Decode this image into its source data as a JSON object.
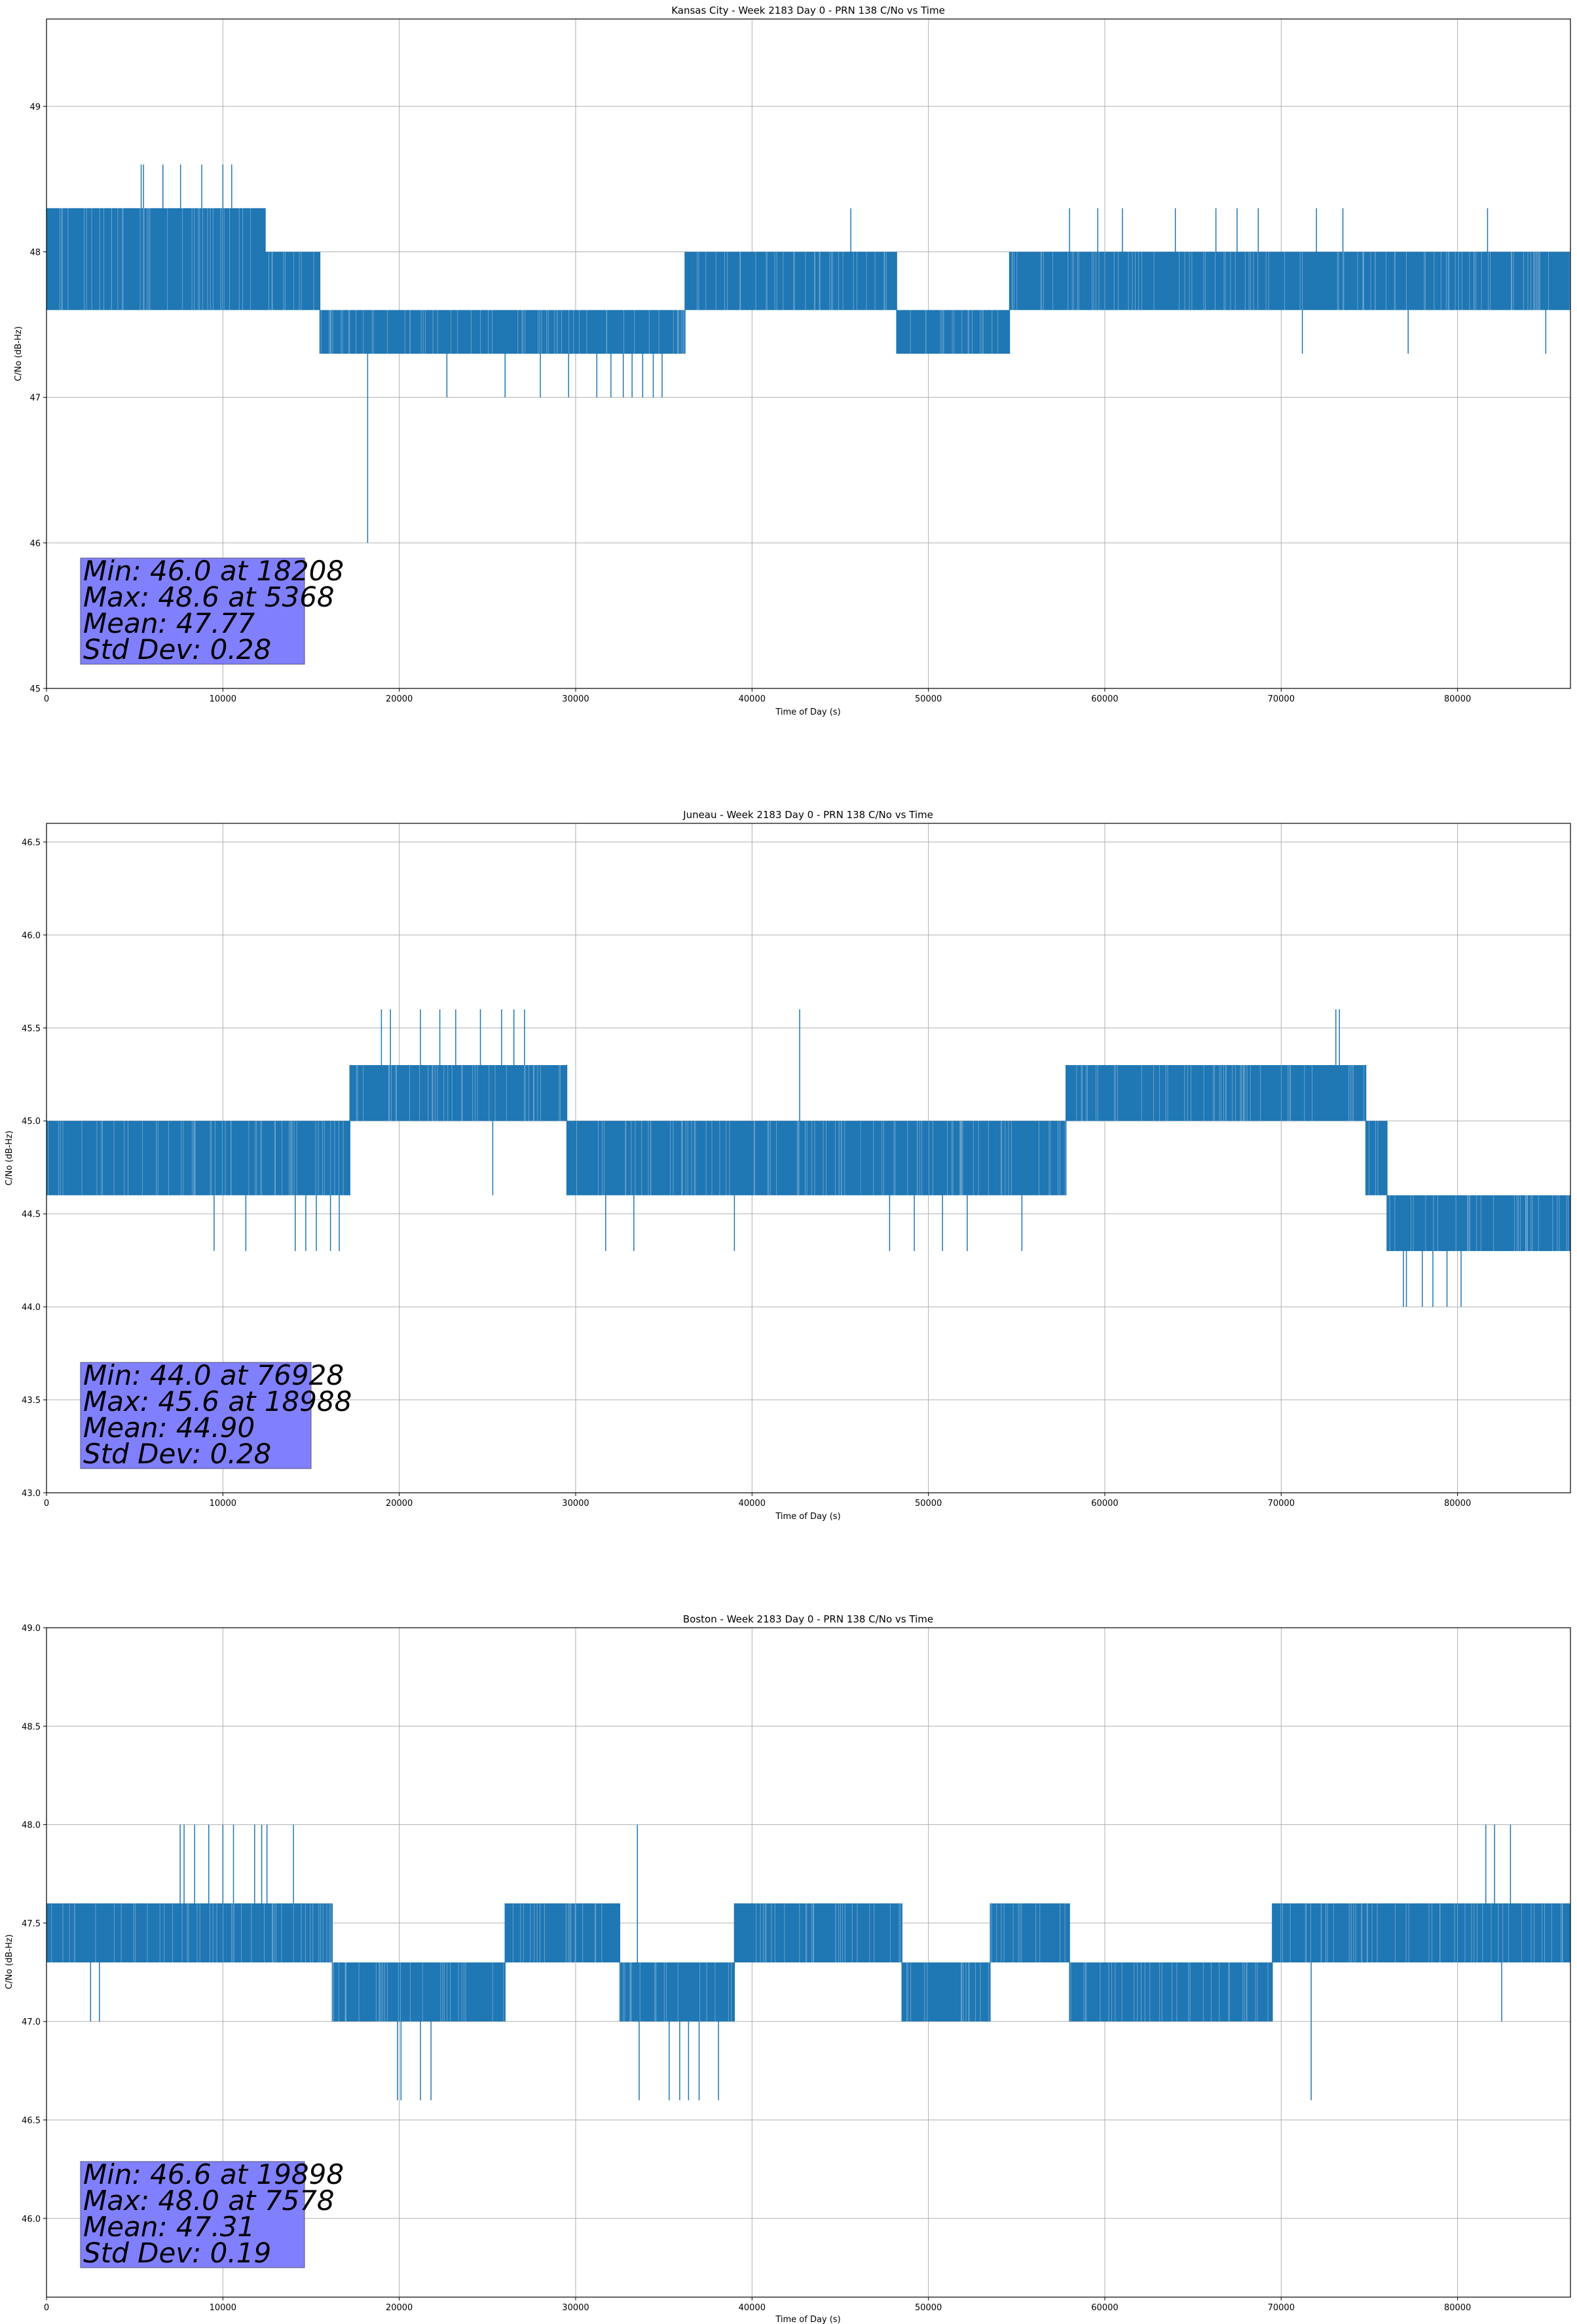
{
  "chart_data": [
    {
      "type": "line",
      "title": "Kansas City - Week 2183 Day 0 - PRN 138 C/No vs Time",
      "xlabel": "Time of Day (s)",
      "ylabel": "C/No (dB-Hz)",
      "xlim": [
        0,
        86400
      ],
      "ylim": [
        45.0,
        49.6
      ],
      "xticks": [
        0,
        10000,
        20000,
        30000,
        40000,
        50000,
        60000,
        70000,
        80000
      ],
      "xtick_labels": [
        "0",
        "10000",
        "20000",
        "30000",
        "40000",
        "50000",
        "60000",
        "70000",
        "80000"
      ],
      "yticks": [
        45,
        46,
        47,
        48,
        49
      ],
      "ytick_labels": [
        "45",
        "46",
        "47",
        "48",
        "49"
      ],
      "grid": true,
      "series_color": "#1f77b4",
      "stats_box": {
        "lines": [
          "Min: 46.0 at 18208",
          "Max: 48.6 at 5368",
          "Mean: 47.77",
          "Std Dev: 0.28"
        ],
        "color": "#8080ff"
      },
      "segments": [
        {
          "start": 0,
          "end": 12400,
          "low": 47.6,
          "high": 48.3
        },
        {
          "start": 12400,
          "end": 15500,
          "low": 47.6,
          "high": 48.0
        },
        {
          "start": 15500,
          "end": 36200,
          "low": 47.3,
          "high": 47.6
        },
        {
          "start": 36200,
          "end": 48200,
          "low": 47.6,
          "high": 48.0
        },
        {
          "start": 48200,
          "end": 54600,
          "low": 47.3,
          "high": 47.6
        },
        {
          "start": 54600,
          "end": 86400,
          "low": 47.6,
          "high": 48.0
        }
      ],
      "events": [
        {
          "x": 18208,
          "y": 46.0
        },
        {
          "x": 5368,
          "y": 48.6
        },
        {
          "x": 5500,
          "y": 48.6
        },
        {
          "x": 6600,
          "y": 48.6
        },
        {
          "x": 7600,
          "y": 48.6
        },
        {
          "x": 8800,
          "y": 48.6
        },
        {
          "x": 10000,
          "y": 48.6
        },
        {
          "x": 10500,
          "y": 48.6
        },
        {
          "x": 22700,
          "y": 47.0
        },
        {
          "x": 26000,
          "y": 47.0
        },
        {
          "x": 28000,
          "y": 47.0
        },
        {
          "x": 29600,
          "y": 47.0
        },
        {
          "x": 31200,
          "y": 47.0
        },
        {
          "x": 32000,
          "y": 47.0
        },
        {
          "x": 32700,
          "y": 47.0
        },
        {
          "x": 33200,
          "y": 47.0
        },
        {
          "x": 33800,
          "y": 47.0
        },
        {
          "x": 34400,
          "y": 47.0
        },
        {
          "x": 34900,
          "y": 47.0
        },
        {
          "x": 45600,
          "y": 48.3
        },
        {
          "x": 58000,
          "y": 48.3
        },
        {
          "x": 59600,
          "y": 48.3
        },
        {
          "x": 61000,
          "y": 48.3
        },
        {
          "x": 64000,
          "y": 48.3
        },
        {
          "x": 66300,
          "y": 48.3
        },
        {
          "x": 67500,
          "y": 48.3
        },
        {
          "x": 68700,
          "y": 48.3
        },
        {
          "x": 72000,
          "y": 48.3
        },
        {
          "x": 73500,
          "y": 48.3
        },
        {
          "x": 81700,
          "y": 48.3
        },
        {
          "x": 71200,
          "y": 47.3
        },
        {
          "x": 77200,
          "y": 47.3
        },
        {
          "x": 85000,
          "y": 47.3
        }
      ]
    },
    {
      "type": "line",
      "title": "Juneau - Week 2183 Day 0 - PRN 138 C/No vs Time",
      "xlabel": "Time of Day (s)",
      "ylabel": "C/No (dB-Hz)",
      "xlim": [
        0,
        86400
      ],
      "ylim": [
        43.0,
        46.6
      ],
      "xticks": [
        0,
        10000,
        20000,
        30000,
        40000,
        50000,
        60000,
        70000,
        80000
      ],
      "xtick_labels": [
        "0",
        "10000",
        "20000",
        "30000",
        "40000",
        "50000",
        "60000",
        "70000",
        "80000"
      ],
      "yticks": [
        43.0,
        43.5,
        44.0,
        44.5,
        45.0,
        45.5,
        46.0,
        46.5
      ],
      "ytick_labels": [
        "43.0",
        "43.5",
        "44.0",
        "44.5",
        "45.0",
        "45.5",
        "46.0",
        "46.5"
      ],
      "grid": true,
      "series_color": "#1f77b4",
      "stats_box": {
        "lines": [
          "Min: 44.0 at 76928",
          "Max: 45.6 at 18988",
          "Mean: 44.90",
          "Std Dev: 0.28"
        ],
        "color": "#8080ff"
      },
      "segments": [
        {
          "start": 0,
          "end": 17200,
          "low": 44.6,
          "high": 45.0
        },
        {
          "start": 17200,
          "end": 29500,
          "low": 45.0,
          "high": 45.3
        },
        {
          "start": 29500,
          "end": 46200,
          "low": 44.6,
          "high": 45.0
        },
        {
          "start": 46200,
          "end": 57800,
          "low": 44.6,
          "high": 45.0
        },
        {
          "start": 57800,
          "end": 74800,
          "low": 45.0,
          "high": 45.3
        },
        {
          "start": 74800,
          "end": 76000,
          "low": 44.6,
          "high": 45.0
        },
        {
          "start": 76000,
          "end": 86400,
          "low": 44.3,
          "high": 44.6
        }
      ],
      "events": [
        {
          "x": 18988,
          "y": 45.6
        },
        {
          "x": 19500,
          "y": 45.6
        },
        {
          "x": 21200,
          "y": 45.6
        },
        {
          "x": 22300,
          "y": 45.6
        },
        {
          "x": 23200,
          "y": 45.6
        },
        {
          "x": 24600,
          "y": 45.6
        },
        {
          "x": 25800,
          "y": 45.6
        },
        {
          "x": 26500,
          "y": 45.6
        },
        {
          "x": 27100,
          "y": 45.6
        },
        {
          "x": 42700,
          "y": 45.6
        },
        {
          "x": 73100,
          "y": 45.6
        },
        {
          "x": 73300,
          "y": 45.6
        },
        {
          "x": 76928,
          "y": 44.0
        },
        {
          "x": 77100,
          "y": 44.0
        },
        {
          "x": 78000,
          "y": 44.0
        },
        {
          "x": 78600,
          "y": 44.0
        },
        {
          "x": 79400,
          "y": 44.0
        },
        {
          "x": 80200,
          "y": 44.0
        },
        {
          "x": 9500,
          "y": 44.3
        },
        {
          "x": 11300,
          "y": 44.3
        },
        {
          "x": 14100,
          "y": 44.3
        },
        {
          "x": 14700,
          "y": 44.3
        },
        {
          "x": 15300,
          "y": 44.3
        },
        {
          "x": 16100,
          "y": 44.3
        },
        {
          "x": 16600,
          "y": 44.3
        },
        {
          "x": 31700,
          "y": 44.3
        },
        {
          "x": 33300,
          "y": 44.3
        },
        {
          "x": 39000,
          "y": 44.3
        },
        {
          "x": 47800,
          "y": 44.3
        },
        {
          "x": 49200,
          "y": 44.3
        },
        {
          "x": 50800,
          "y": 44.3
        },
        {
          "x": 52200,
          "y": 44.3
        },
        {
          "x": 55300,
          "y": 44.3
        },
        {
          "x": 25300,
          "y": 44.6
        }
      ]
    },
    {
      "type": "line",
      "title": "Boston - Week 2183 Day 0 - PRN 138 C/No vs Time",
      "xlabel": "Time of Day (s)",
      "ylabel": "C/No (dB-Hz)",
      "xlim": [
        0,
        86400
      ],
      "ylim": [
        45.6,
        49.0
      ],
      "xticks": [
        0,
        10000,
        20000,
        30000,
        40000,
        50000,
        60000,
        70000,
        80000
      ],
      "xtick_labels": [
        "0",
        "10000",
        "20000",
        "30000",
        "40000",
        "50000",
        "60000",
        "70000",
        "80000"
      ],
      "yticks": [
        46.0,
        46.5,
        47.0,
        47.5,
        48.0,
        48.5,
        49.0
      ],
      "ytick_labels": [
        "46.0",
        "46.5",
        "47.0",
        "47.5",
        "48.0",
        "48.5",
        "49.0"
      ],
      "grid": true,
      "series_color": "#1f77b4",
      "stats_box": {
        "lines": [
          "Min: 46.6 at 19898",
          "Max: 48.0 at 7578",
          "Mean: 47.31",
          "Std Dev: 0.19"
        ],
        "color": "#8080ff"
      },
      "segments": [
        {
          "start": 0,
          "end": 16200,
          "low": 47.3,
          "high": 47.6
        },
        {
          "start": 16200,
          "end": 26000,
          "low": 47.0,
          "high": 47.3
        },
        {
          "start": 26000,
          "end": 32500,
          "low": 47.3,
          "high": 47.6
        },
        {
          "start": 32500,
          "end": 39000,
          "low": 47.0,
          "high": 47.3
        },
        {
          "start": 39000,
          "end": 48500,
          "low": 47.3,
          "high": 47.6
        },
        {
          "start": 48500,
          "end": 53500,
          "low": 47.0,
          "high": 47.3
        },
        {
          "start": 53500,
          "end": 58000,
          "low": 47.3,
          "high": 47.6
        },
        {
          "start": 58000,
          "end": 69500,
          "low": 47.0,
          "high": 47.3
        },
        {
          "start": 69500,
          "end": 79500,
          "low": 47.3,
          "high": 47.6
        },
        {
          "start": 79500,
          "end": 86400,
          "low": 47.3,
          "high": 47.6
        }
      ],
      "events": [
        {
          "x": 7578,
          "y": 48.0
        },
        {
          "x": 7800,
          "y": 48.0
        },
        {
          "x": 8400,
          "y": 48.0
        },
        {
          "x": 9200,
          "y": 48.0
        },
        {
          "x": 10000,
          "y": 48.0
        },
        {
          "x": 10600,
          "y": 48.0
        },
        {
          "x": 11800,
          "y": 48.0
        },
        {
          "x": 12200,
          "y": 48.0
        },
        {
          "x": 12500,
          "y": 48.0
        },
        {
          "x": 14000,
          "y": 48.0
        },
        {
          "x": 33500,
          "y": 48.0
        },
        {
          "x": 81600,
          "y": 48.0
        },
        {
          "x": 82100,
          "y": 48.0
        },
        {
          "x": 83000,
          "y": 48.0
        },
        {
          "x": 19898,
          "y": 46.6
        },
        {
          "x": 20100,
          "y": 46.6
        },
        {
          "x": 21200,
          "y": 46.6
        },
        {
          "x": 21800,
          "y": 46.6
        },
        {
          "x": 33600,
          "y": 46.6
        },
        {
          "x": 35300,
          "y": 46.6
        },
        {
          "x": 35900,
          "y": 46.6
        },
        {
          "x": 36400,
          "y": 46.6
        },
        {
          "x": 37000,
          "y": 46.6
        },
        {
          "x": 38100,
          "y": 46.6
        },
        {
          "x": 71700,
          "y": 46.6
        },
        {
          "x": 2500,
          "y": 47.0
        },
        {
          "x": 3000,
          "y": 47.0
        },
        {
          "x": 82500,
          "y": 47.0
        }
      ]
    }
  ]
}
